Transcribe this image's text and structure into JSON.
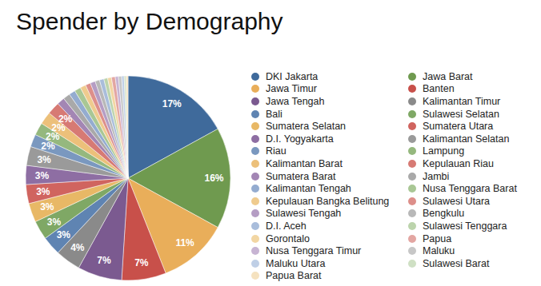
{
  "chart_data": {
    "type": "pie",
    "title": "Spender by Demography",
    "categories": [
      "DKI Jakarta",
      "Jawa Barat",
      "Jawa Timur",
      "Banten",
      "Jawa Tengah",
      "Kalimantan Timur",
      "Bali",
      "Sulawesi Selatan",
      "Sumatera Selatan",
      "Sumatera Utara",
      "D.I. Yogyakarta",
      "Kalimantan Selatan",
      "Riau",
      "Lampung",
      "Kalimantan Barat",
      "Kepulauan Riau",
      "Sumatera Barat",
      "Jambi",
      "Kalimantan Tengah",
      "Nusa Tenggara Barat",
      "Kepulauan Bangka Belitung",
      "Sulawesi Utara",
      "Sulawesi Tengah",
      "Bengkulu",
      "D.I. Aceh",
      "Sulawesi Tenggara",
      "Gorontalo",
      "Papua",
      "Nusa Tenggara Timur",
      "Maluku",
      "Maluku Utara",
      "Sulawesi Barat",
      "Papua Barat"
    ],
    "values": [
      17,
      16,
      11,
      7,
      7,
      4,
      3,
      3,
      3,
      3,
      3,
      3,
      2,
      2,
      2,
      2,
      1.2,
      1.1,
      1,
      1,
      0.9,
      0.8,
      0.8,
      0.7,
      0.7,
      0.6,
      0.6,
      0.6,
      0.5,
      0.5,
      0.4,
      0.3,
      0.3
    ],
    "value_labels": [
      "17%",
      "16%",
      "11%",
      "7%",
      "7%",
      "4%",
      "3%",
      "3%",
      "3%",
      "3%",
      "3%",
      "3%",
      "2%",
      "2%",
      "2%",
      "2%",
      null,
      null,
      null,
      null,
      null,
      null,
      null,
      null,
      null,
      null,
      null,
      null,
      null,
      null,
      null,
      null,
      null
    ],
    "colors": [
      "#3f6a9b",
      "#6f9a4f",
      "#e9ae5a",
      "#c8504a",
      "#7b5a90",
      "#8a8a8a",
      "#5f84b2",
      "#7fa865",
      "#e8b866",
      "#d0645f",
      "#8e6ea3",
      "#9a9a9a",
      "#7a98bf",
      "#95b87e",
      "#ecc07a",
      "#d77a74",
      "#a386b4",
      "#a9a9a9",
      "#94acd0",
      "#a9c795",
      "#efcb8e",
      "#dd8f8a",
      "#b59dc4",
      "#b8b8b8",
      "#a9bddb",
      "#bcd4ac",
      "#f2d6a3",
      "#e3a6a2",
      "#c7b4d3",
      "#c7c7c7",
      "#bfcfe6",
      "#cfe0c4",
      "#f5e2c0"
    ],
    "data_labels": true,
    "legend": "right"
  }
}
